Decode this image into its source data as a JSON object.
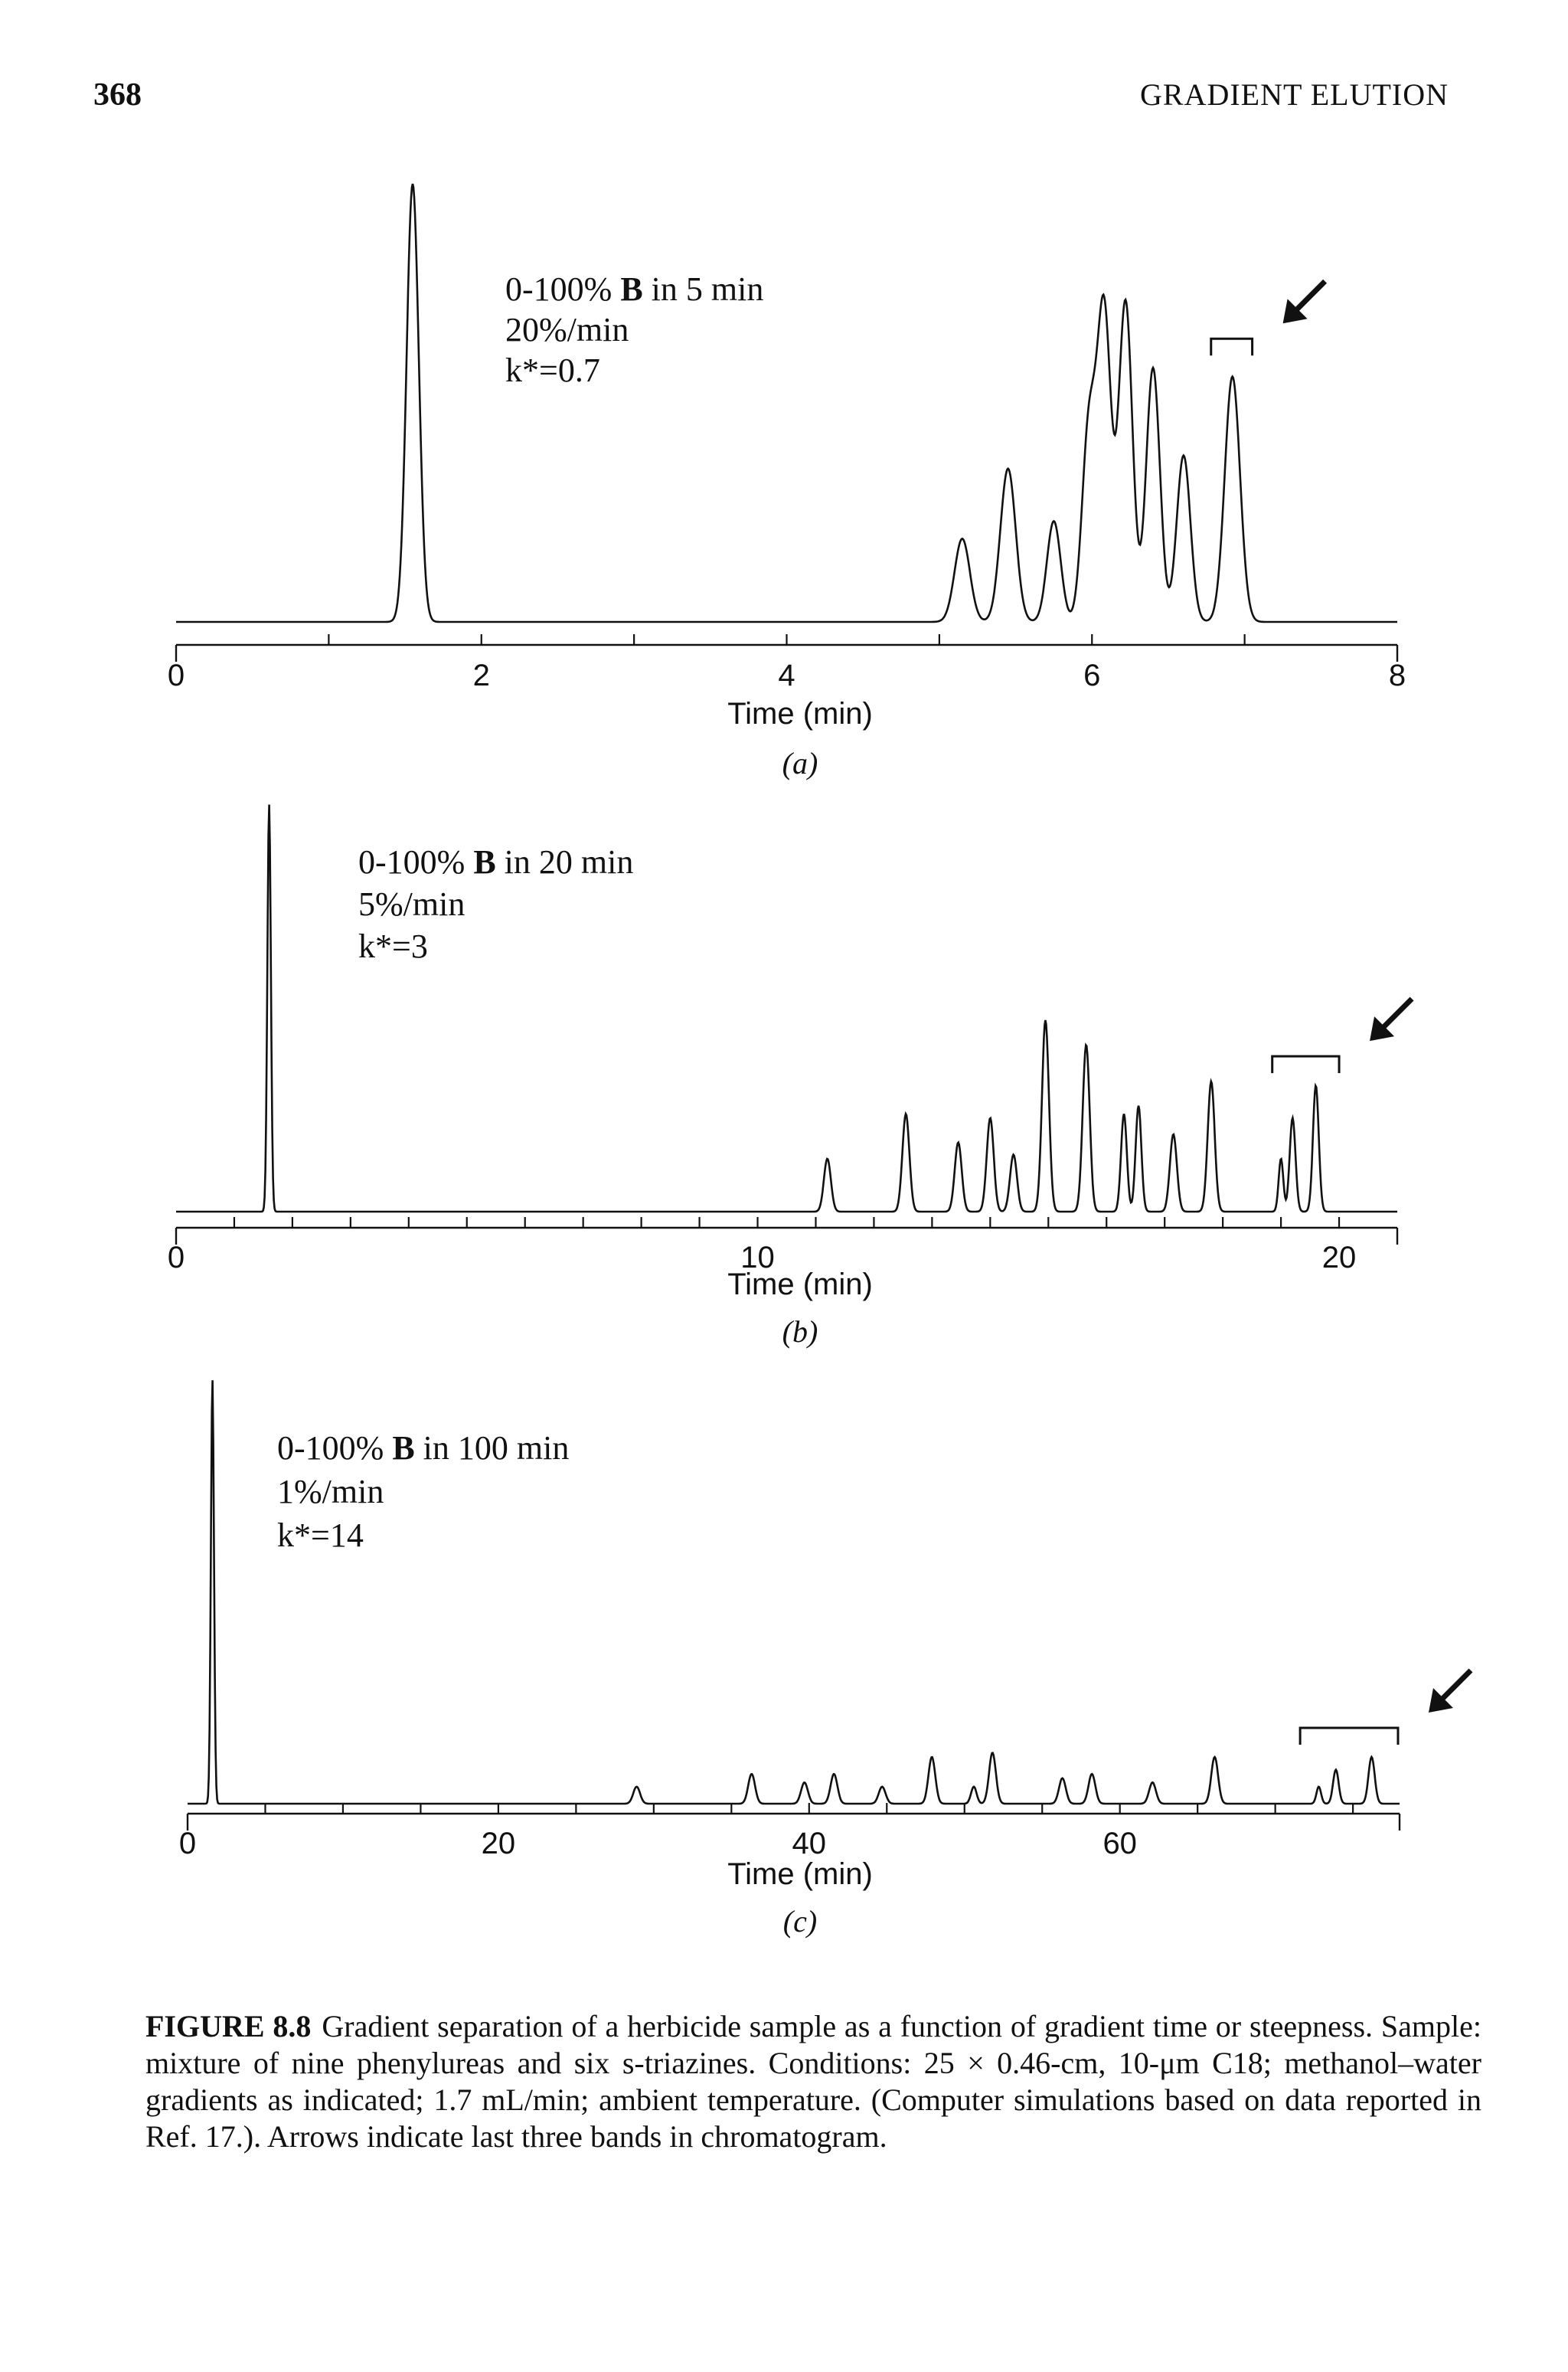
{
  "header": {
    "page_number": "368",
    "running_head": "GRADIENT ELUTION"
  },
  "chart_data": [
    {
      "type": "line",
      "panel_label": "(a)",
      "xlabel": "Time (min)",
      "xlim": [
        0,
        8
      ],
      "x_tick_labels": [
        "0",
        "2",
        "4",
        "6",
        "8"
      ],
      "conditions": {
        "range_prefix": "0-100%",
        "b_label": "B",
        "range_suffix": "in 5 min",
        "rate": "20%/min",
        "kstar": "k*=0.7"
      },
      "peaks": [
        {
          "t": 1.55,
          "h": 1.0,
          "w": 0.04
        },
        {
          "t": 5.15,
          "h": 0.19,
          "w": 0.05
        },
        {
          "t": 5.45,
          "h": 0.35,
          "w": 0.05
        },
        {
          "t": 5.75,
          "h": 0.23,
          "w": 0.045
        },
        {
          "t": 5.98,
          "h": 0.44,
          "w": 0.045
        },
        {
          "t": 6.08,
          "h": 0.7,
          "w": 0.045
        },
        {
          "t": 6.22,
          "h": 0.73,
          "w": 0.045
        },
        {
          "t": 6.4,
          "h": 0.58,
          "w": 0.045
        },
        {
          "t": 6.6,
          "h": 0.38,
          "w": 0.045
        },
        {
          "t": 6.92,
          "h": 0.56,
          "w": 0.05
        }
      ],
      "bracket_range": [
        6.78,
        7.05
      ]
    },
    {
      "type": "line",
      "panel_label": "(b)",
      "xlabel": "Time (min)",
      "xlim": [
        0,
        21
      ],
      "x_tick_labels": [
        "0",
        "10",
        "20"
      ],
      "x_tick_label_positions": [
        0,
        10,
        20
      ],
      "conditions": {
        "range_prefix": "0-100%",
        "b_label": "B",
        "range_suffix": "in 20 min",
        "rate": "5%/min",
        "kstar": "k*=3"
      },
      "peaks": [
        {
          "t": 1.6,
          "h": 1.0,
          "w": 0.03
        },
        {
          "t": 11.2,
          "h": 0.13,
          "w": 0.06
        },
        {
          "t": 12.55,
          "h": 0.24,
          "w": 0.06
        },
        {
          "t": 13.45,
          "h": 0.17,
          "w": 0.06
        },
        {
          "t": 14.0,
          "h": 0.23,
          "w": 0.06
        },
        {
          "t": 14.4,
          "h": 0.14,
          "w": 0.06
        },
        {
          "t": 14.95,
          "h": 0.47,
          "w": 0.06
        },
        {
          "t": 15.65,
          "h": 0.41,
          "w": 0.06
        },
        {
          "t": 16.3,
          "h": 0.24,
          "w": 0.05
        },
        {
          "t": 16.55,
          "h": 0.26,
          "w": 0.05
        },
        {
          "t": 17.15,
          "h": 0.19,
          "w": 0.06
        },
        {
          "t": 17.8,
          "h": 0.32,
          "w": 0.06
        },
        {
          "t": 19.0,
          "h": 0.13,
          "w": 0.04
        },
        {
          "t": 19.2,
          "h": 0.23,
          "w": 0.05
        },
        {
          "t": 19.6,
          "h": 0.31,
          "w": 0.05
        }
      ],
      "bracket_range": [
        18.85,
        20.0
      ]
    },
    {
      "type": "line",
      "panel_label": "(c)",
      "xlabel": "Time (min)",
      "xlim": [
        0,
        78
      ],
      "x_tick_labels": [
        "0",
        "20",
        "40",
        "60"
      ],
      "x_tick_label_positions": [
        0,
        20,
        40,
        60
      ],
      "conditions": {
        "range_prefix": "0-100%",
        "b_label": "B",
        "range_suffix": "in 100 min",
        "rate": "1%/min",
        "kstar": "k*=14"
      },
      "peaks": [
        {
          "t": 1.6,
          "h": 1.0,
          "w": 0.1
        },
        {
          "t": 28.9,
          "h": 0.04,
          "w": 0.22
        },
        {
          "t": 36.3,
          "h": 0.07,
          "w": 0.22
        },
        {
          "t": 39.7,
          "h": 0.05,
          "w": 0.22
        },
        {
          "t": 41.6,
          "h": 0.07,
          "w": 0.22
        },
        {
          "t": 44.7,
          "h": 0.04,
          "w": 0.22
        },
        {
          "t": 47.9,
          "h": 0.11,
          "w": 0.22
        },
        {
          "t": 50.6,
          "h": 0.04,
          "w": 0.18
        },
        {
          "t": 51.8,
          "h": 0.12,
          "w": 0.22
        },
        {
          "t": 56.3,
          "h": 0.06,
          "w": 0.22
        },
        {
          "t": 58.2,
          "h": 0.07,
          "w": 0.22
        },
        {
          "t": 62.1,
          "h": 0.05,
          "w": 0.22
        },
        {
          "t": 66.1,
          "h": 0.11,
          "w": 0.22
        },
        {
          "t": 72.8,
          "h": 0.04,
          "w": 0.15
        },
        {
          "t": 73.9,
          "h": 0.08,
          "w": 0.18
        },
        {
          "t": 76.2,
          "h": 0.11,
          "w": 0.2
        }
      ],
      "bracket_range": [
        71.6,
        77.9
      ]
    }
  ],
  "caption": {
    "label": "FIGURE 8.8",
    "text": "Gradient separation of a herbicide sample as a function of gradient time or steepness. Sample: mixture of nine phenylureas and six s-triazines. Conditions: 25 × 0.46-cm, 10-μm C18; methanol–water gradients as indicated; 1.7 mL/min; ambient temperature. (Computer simulations based on data reported in Ref. 17.). Arrows indicate last three bands in chromatogram."
  }
}
